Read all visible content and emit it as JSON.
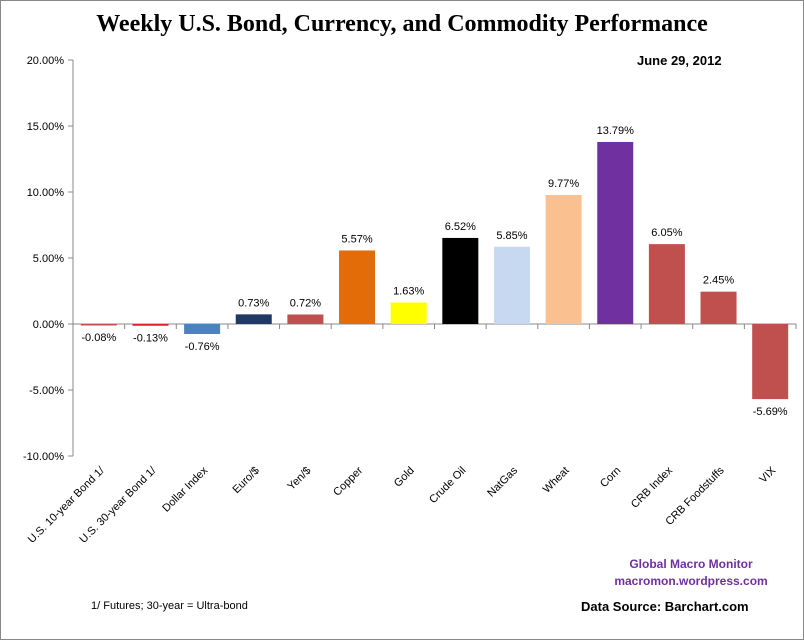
{
  "chart_data": {
    "type": "bar",
    "title": "Weekly U.S. Bond, Currency, and Commodity Performance",
    "subtitle": "June 29, 2012",
    "categories": [
      "U.S. 10-year Bond 1/",
      "U.S. 30-year Bond 1/",
      "Dollar Index",
      "Euro/$",
      "Yen/$",
      "Copper",
      "Gold",
      "Crude Oil",
      "NatGas",
      "Wheat",
      "Corn",
      "CRB Index",
      "CRB Foodstuffs",
      "VIX"
    ],
    "values": [
      -0.08,
      -0.13,
      -0.76,
      0.73,
      0.72,
      5.57,
      1.63,
      6.52,
      5.85,
      9.77,
      13.79,
      6.05,
      2.45,
      -5.69
    ],
    "data_labels": [
      "-0.08%",
      "-0.13%",
      "-0.76%",
      "0.73%",
      "0.72%",
      "5.57%",
      "1.63%",
      "6.52%",
      "5.85%",
      "9.77%",
      "13.79%",
      "6.05%",
      "2.45%",
      "-5.69%"
    ],
    "colors": [
      "#c0504d",
      "#e02020",
      "#4f81bd",
      "#1f3864",
      "#c0504d",
      "#e36c09",
      "#ffff00",
      "#000000",
      "#c6d9f1",
      "#fac090",
      "#7030a0",
      "#c0504d",
      "#c0504d",
      "#c0504d"
    ],
    "ylim": [
      -10,
      20
    ],
    "yticks": [
      "-10.00%",
      "-5.00%",
      "0.00%",
      "5.00%",
      "10.00%",
      "15.00%",
      "20.00%"
    ],
    "ytick_values": [
      -10,
      -5,
      0,
      5,
      10,
      15,
      20
    ],
    "xlabel": "",
    "ylabel": "",
    "grid": false,
    "legend": "none"
  },
  "credit": {
    "line1": "Global Macro Monitor",
    "line2": "macromon.wordpress.com"
  },
  "source": "Data Source:  Barchart.com",
  "note": "1/  Futures; 30-year = Ultra-bond"
}
